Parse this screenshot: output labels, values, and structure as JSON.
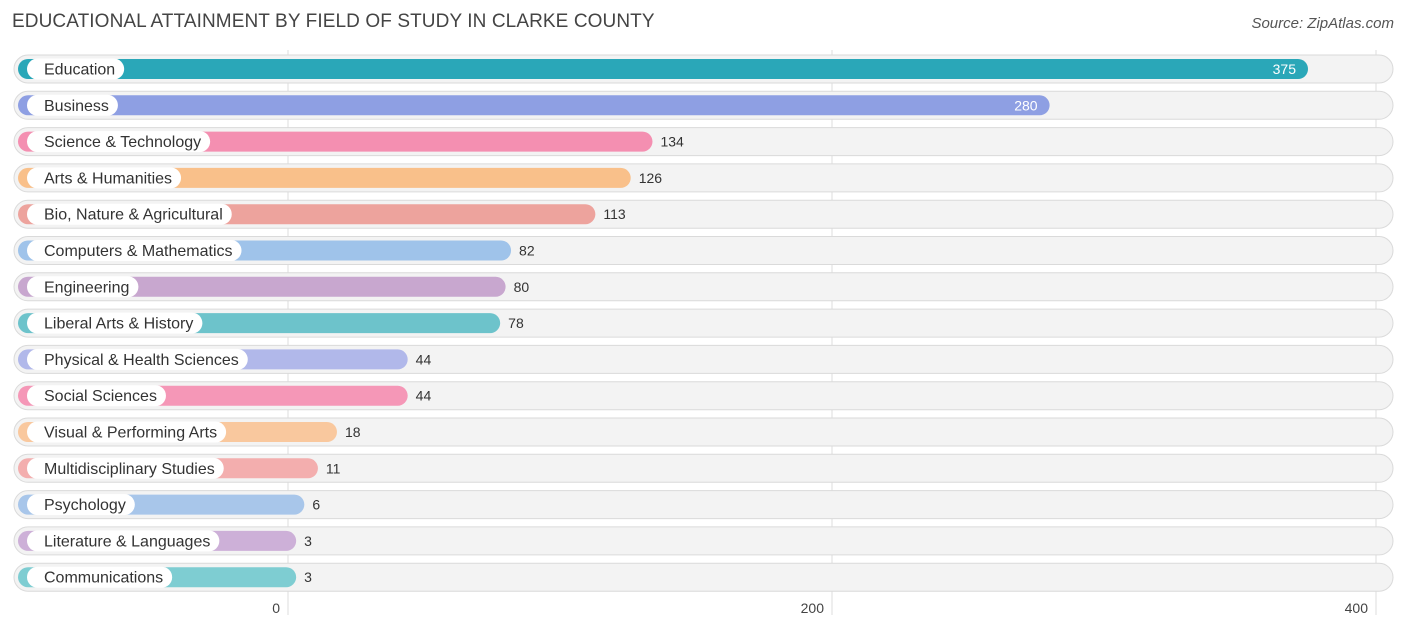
{
  "header": {
    "title": "EDUCATIONAL ATTAINMENT BY FIELD OF STUDY IN CLARKE COUNTY",
    "source": "Source: ZipAtlas.com"
  },
  "chart_data": {
    "type": "bar",
    "orientation": "horizontal",
    "title": "EDUCATIONAL ATTAINMENT BY FIELD OF STUDY IN CLARKE COUNTY",
    "categories": [
      "Education",
      "Business",
      "Science & Technology",
      "Arts & Humanities",
      "Bio, Nature & Agricultural",
      "Computers & Mathematics",
      "Engineering",
      "Liberal Arts & History",
      "Physical & Health Sciences",
      "Social Sciences",
      "Visual & Performing Arts",
      "Multidisciplinary Studies",
      "Psychology",
      "Literature & Languages",
      "Communications"
    ],
    "values": [
      375,
      280,
      134,
      126,
      113,
      82,
      80,
      78,
      44,
      44,
      18,
      11,
      6,
      3,
      3
    ],
    "colors": [
      "#2aa7b8",
      "#8e9fe3",
      "#f48fb1",
      "#f9c08a",
      "#eda39d",
      "#9fc3ea",
      "#c8a7cf",
      "#6dc3cb",
      "#b1b8ea",
      "#f597b7",
      "#f9c89e",
      "#f3aeae",
      "#a8c6ea",
      "#cdb0d8",
      "#7ecdd2"
    ],
    "xticks": [
      0,
      200,
      400
    ],
    "xlim": [
      0,
      400
    ],
    "grid": true
  }
}
